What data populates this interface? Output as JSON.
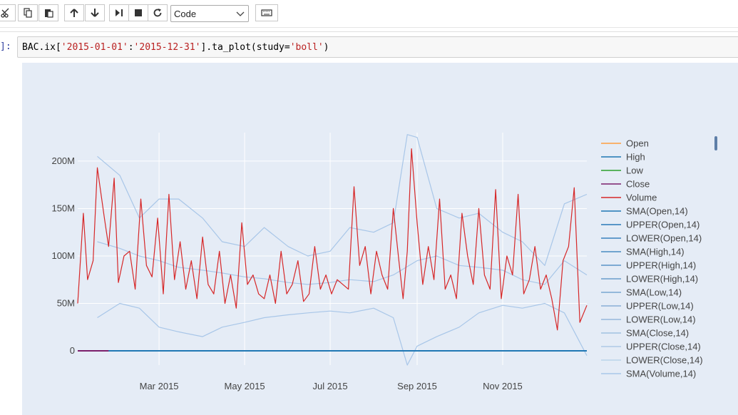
{
  "toolbar": {
    "cell_type": "Code",
    "buttons": [
      "cut-icon",
      "copy-icon",
      "paste-icon",
      "move-up-icon",
      "move-down-icon",
      "run-icon",
      "stop-icon",
      "restart-icon",
      "keyboard-icon"
    ]
  },
  "cell": {
    "prompt": "]:",
    "code_parts": [
      "BAC.ix[",
      "'2015-01-01'",
      ":",
      "'2015-12-31'",
      "].ta_plot(study=",
      "'boll'",
      ")"
    ]
  },
  "colors": {
    "plot_bg": "#e5ecf6",
    "volume": "#d62728",
    "sma_band": "#a8c6e8",
    "baseline": "#1f77b4"
  },
  "chart_data": {
    "type": "line",
    "title": "",
    "xlabel": "",
    "ylabel": "",
    "x_range": [
      "2015-01-02",
      "2015-12-31"
    ],
    "xticks": [
      "Mar 2015",
      "May 2015",
      "Jul 2015",
      "Sep 2015",
      "Nov 2015"
    ],
    "yticks": [
      "0",
      "50M",
      "100M",
      "150M",
      "200M"
    ],
    "ylim": [
      -15000000,
      230000000
    ],
    "grid": true,
    "legend_position": "right",
    "legend": [
      "Open",
      "High",
      "Low",
      "Close",
      "Volume",
      "SMA(Open,14)",
      "UPPER(Open,14)",
      "LOWER(Open,14)",
      "SMA(High,14)",
      "UPPER(High,14)",
      "LOWER(High,14)",
      "SMA(Low,14)",
      "UPPER(Low,14)",
      "LOWER(Low,14)",
      "SMA(Close,14)",
      "UPPER(Close,14)",
      "LOWER(Close,14)",
      "SMA(Volume,14)"
    ],
    "legend_colors": [
      "#ff9f3f",
      "#1f77b4",
      "#2ca02c",
      "#7b1f6b",
      "#d62728",
      "#1f77b4",
      "#2a7ab8",
      "#3a82bd",
      "#4a8bc2",
      "#5a94c7",
      "#6a9dcc",
      "#7aa6d1",
      "#8aafd6",
      "#96b8db",
      "#a2c1e0",
      "#aecae5",
      "#bad3ea",
      "#a8c6e8"
    ],
    "series": [
      {
        "name": "Volume",
        "x": [
          "2015-01-02",
          "2015-01-06",
          "2015-01-09",
          "2015-01-13",
          "2015-01-16",
          "2015-01-21",
          "2015-01-24",
          "2015-01-28",
          "2015-01-31",
          "2015-02-04",
          "2015-02-08",
          "2015-02-12",
          "2015-02-16",
          "2015-02-20",
          "2015-02-24",
          "2015-02-28",
          "2015-03-04",
          "2015-03-08",
          "2015-03-12",
          "2015-03-16",
          "2015-03-20",
          "2015-03-24",
          "2015-03-28",
          "2015-04-01",
          "2015-04-05",
          "2015-04-09",
          "2015-04-13",
          "2015-04-17",
          "2015-04-21",
          "2015-04-25",
          "2015-04-29",
          "2015-05-03",
          "2015-05-07",
          "2015-05-11",
          "2015-05-15",
          "2015-05-19",
          "2015-05-23",
          "2015-05-27",
          "2015-05-31",
          "2015-06-04",
          "2015-06-08",
          "2015-06-12",
          "2015-06-16",
          "2015-06-20",
          "2015-06-24",
          "2015-06-28",
          "2015-07-02",
          "2015-07-06",
          "2015-07-10",
          "2015-07-14",
          "2015-07-18",
          "2015-07-22",
          "2015-07-26",
          "2015-07-30",
          "2015-08-03",
          "2015-08-07",
          "2015-08-11",
          "2015-08-15",
          "2015-08-19",
          "2015-08-22",
          "2015-08-25",
          "2015-08-28",
          "2015-09-01",
          "2015-09-05",
          "2015-09-09",
          "2015-09-13",
          "2015-09-17",
          "2015-09-21",
          "2015-09-25",
          "2015-09-29",
          "2015-10-03",
          "2015-10-07",
          "2015-10-11",
          "2015-10-15",
          "2015-10-19",
          "2015-10-23",
          "2015-10-27",
          "2015-10-31",
          "2015-11-04",
          "2015-11-08",
          "2015-11-12",
          "2015-11-16",
          "2015-11-20",
          "2015-11-24",
          "2015-11-28",
          "2015-12-02",
          "2015-12-06",
          "2015-12-10",
          "2015-12-14",
          "2015-12-18",
          "2015-12-22",
          "2015-12-26",
          "2015-12-31"
        ],
        "y": [
          50,
          145,
          75,
          95,
          193,
          140,
          110,
          182,
          72,
          100,
          105,
          65,
          160,
          90,
          78,
          140,
          60,
          165,
          75,
          115,
          65,
          95,
          55,
          120,
          70,
          60,
          105,
          50,
          80,
          45,
          135,
          70,
          80,
          60,
          55,
          80,
          50,
          105,
          60,
          70,
          95,
          52,
          60,
          110,
          65,
          80,
          60,
          75,
          70,
          65,
          173,
          90,
          110,
          60,
          105,
          80,
          65,
          150,
          95,
          55,
          105,
          213,
          135,
          70,
          110,
          75,
          160,
          65,
          80,
          55,
          145,
          100,
          70,
          150,
          80,
          65,
          170,
          55,
          100,
          80,
          165,
          60,
          75,
          110,
          65,
          80,
          55,
          22,
          95,
          110,
          172,
          30,
          48
        ]
      },
      {
        "name": "SMA(Volume,14)",
        "x": [
          "2015-01-16",
          "2015-02-01",
          "2015-02-15",
          "2015-03-01",
          "2015-03-15",
          "2015-04-01",
          "2015-04-15",
          "2015-05-01",
          "2015-05-15",
          "2015-06-01",
          "2015-06-15",
          "2015-07-01",
          "2015-07-15",
          "2015-08-01",
          "2015-08-15",
          "2015-09-01",
          "2015-09-15",
          "2015-10-01",
          "2015-10-15",
          "2015-11-01",
          "2015-11-15",
          "2015-12-01",
          "2015-12-15",
          "2015-12-31"
        ],
        "y": [
          115,
          108,
          100,
          95,
          88,
          85,
          82,
          78,
          76,
          72,
          70,
          72,
          75,
          73,
          80,
          95,
          100,
          90,
          88,
          85,
          75,
          70,
          95,
          80
        ]
      },
      {
        "name": "UPPER(Volume,14)",
        "x": [
          "2015-01-16",
          "2015-02-01",
          "2015-02-15",
          "2015-03-01",
          "2015-03-15",
          "2015-04-01",
          "2015-04-15",
          "2015-05-01",
          "2015-05-15",
          "2015-06-01",
          "2015-06-15",
          "2015-07-01",
          "2015-07-15",
          "2015-08-01",
          "2015-08-15",
          "2015-08-25",
          "2015-09-01",
          "2015-09-15",
          "2015-10-01",
          "2015-10-15",
          "2015-11-01",
          "2015-11-15",
          "2015-12-01",
          "2015-12-15",
          "2015-12-31"
        ],
        "y": [
          205,
          185,
          140,
          160,
          160,
          140,
          115,
          110,
          130,
          110,
          100,
          105,
          130,
          125,
          135,
          228,
          225,
          150,
          140,
          145,
          125,
          115,
          90,
          155,
          165
        ]
      },
      {
        "name": "LOWER(Volume,14)",
        "x": [
          "2015-01-16",
          "2015-02-01",
          "2015-02-15",
          "2015-03-01",
          "2015-03-15",
          "2015-04-01",
          "2015-04-15",
          "2015-05-01",
          "2015-05-15",
          "2015-06-01",
          "2015-06-15",
          "2015-07-01",
          "2015-07-15",
          "2015-08-01",
          "2015-08-15",
          "2015-08-25",
          "2015-09-01",
          "2015-09-15",
          "2015-10-01",
          "2015-10-15",
          "2015-11-01",
          "2015-11-15",
          "2015-12-01",
          "2015-12-15",
          "2015-12-31"
        ],
        "y": [
          35,
          50,
          45,
          25,
          20,
          15,
          25,
          30,
          35,
          38,
          40,
          42,
          40,
          45,
          35,
          -15,
          5,
          15,
          25,
          40,
          48,
          45,
          50,
          40,
          -5
        ]
      },
      {
        "name": "Open",
        "x": [
          "2015-01-02",
          "2015-12-31"
        ],
        "y": [
          0.017,
          0.017
        ]
      }
    ]
  }
}
